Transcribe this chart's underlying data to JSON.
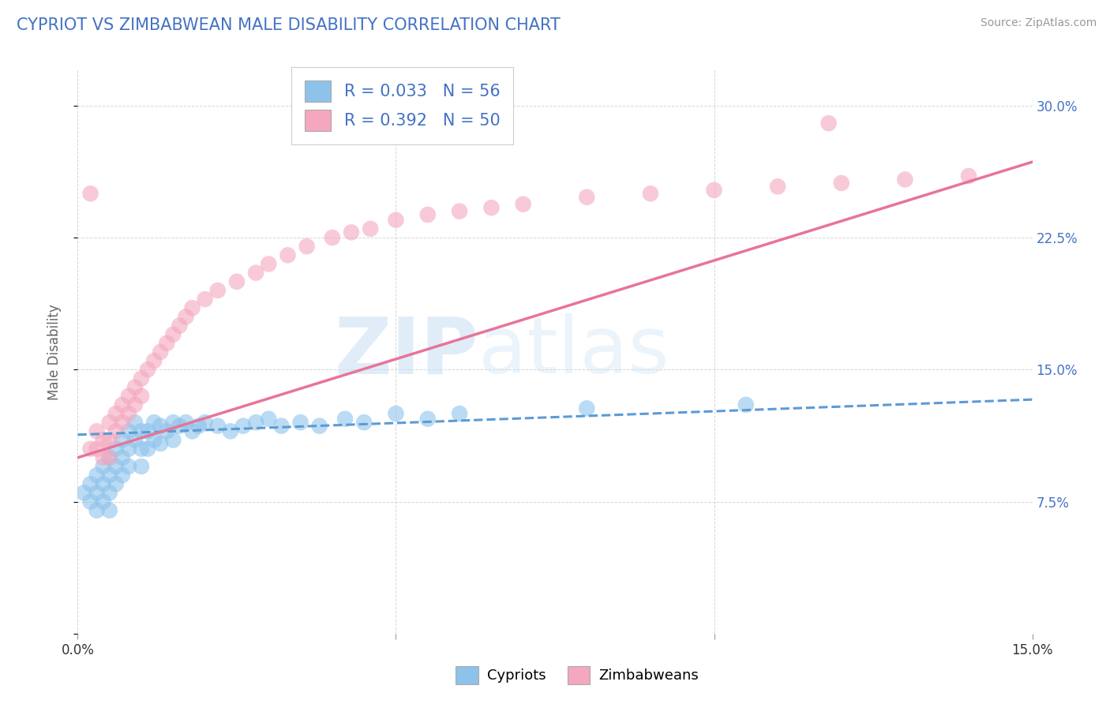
{
  "title": "CYPRIOT VS ZIMBABWEAN MALE DISABILITY CORRELATION CHART",
  "source": "Source: ZipAtlas.com",
  "ylabel": "Male Disability",
  "xlim": [
    0.0,
    0.15
  ],
  "ylim": [
    0.0,
    0.32
  ],
  "R_cypriot": 0.033,
  "N_cypriot": 56,
  "R_zimbabwean": 0.392,
  "N_zimbabwean": 50,
  "color_cypriot": "#8dc3eb",
  "color_zimbabwean": "#f4a7be",
  "line_color_cypriot": "#5b9bd5",
  "line_color_zimbabwean": "#e8749a",
  "watermark_zip": "ZIP",
  "watermark_atlas": "atlas",
  "background_color": "#ffffff",
  "grid_color": "#cccccc",
  "title_color": "#4472c4",
  "axis_label_color": "#666666",
  "tick_label_color_right": "#4472c4",
  "tick_label_color_bottom": "#333333",
  "cypriot_x": [
    0.001,
    0.002,
    0.002,
    0.003,
    0.003,
    0.003,
    0.004,
    0.004,
    0.004,
    0.005,
    0.005,
    0.005,
    0.005,
    0.006,
    0.006,
    0.006,
    0.007,
    0.007,
    0.007,
    0.008,
    0.008,
    0.008,
    0.009,
    0.009,
    0.01,
    0.01,
    0.01,
    0.011,
    0.011,
    0.012,
    0.012,
    0.013,
    0.013,
    0.014,
    0.015,
    0.015,
    0.016,
    0.017,
    0.018,
    0.019,
    0.02,
    0.022,
    0.024,
    0.026,
    0.028,
    0.03,
    0.032,
    0.035,
    0.038,
    0.042,
    0.045,
    0.05,
    0.055,
    0.06,
    0.08,
    0.105
  ],
  "cypriot_y": [
    0.08,
    0.085,
    0.075,
    0.09,
    0.08,
    0.07,
    0.095,
    0.085,
    0.075,
    0.1,
    0.09,
    0.08,
    0.07,
    0.105,
    0.095,
    0.085,
    0.11,
    0.1,
    0.09,
    0.115,
    0.105,
    0.095,
    0.12,
    0.11,
    0.115,
    0.105,
    0.095,
    0.115,
    0.105,
    0.12,
    0.11,
    0.118,
    0.108,
    0.115,
    0.12,
    0.11,
    0.118,
    0.12,
    0.115,
    0.118,
    0.12,
    0.118,
    0.115,
    0.118,
    0.12,
    0.122,
    0.118,
    0.12,
    0.118,
    0.122,
    0.12,
    0.125,
    0.122,
    0.125,
    0.128,
    0.13
  ],
  "zimbabwean_x": [
    0.002,
    0.003,
    0.003,
    0.004,
    0.004,
    0.005,
    0.005,
    0.005,
    0.006,
    0.006,
    0.007,
    0.007,
    0.008,
    0.008,
    0.009,
    0.009,
    0.01,
    0.01,
    0.011,
    0.012,
    0.013,
    0.014,
    0.015,
    0.016,
    0.017,
    0.018,
    0.02,
    0.022,
    0.025,
    0.028,
    0.03,
    0.033,
    0.036,
    0.04,
    0.043,
    0.046,
    0.05,
    0.055,
    0.06,
    0.065,
    0.07,
    0.08,
    0.09,
    0.1,
    0.11,
    0.12,
    0.13,
    0.14,
    0.118,
    0.002
  ],
  "zimbabwean_y": [
    0.105,
    0.115,
    0.105,
    0.11,
    0.1,
    0.12,
    0.11,
    0.1,
    0.125,
    0.115,
    0.13,
    0.12,
    0.135,
    0.125,
    0.14,
    0.13,
    0.145,
    0.135,
    0.15,
    0.155,
    0.16,
    0.165,
    0.17,
    0.175,
    0.18,
    0.185,
    0.19,
    0.195,
    0.2,
    0.205,
    0.21,
    0.215,
    0.22,
    0.225,
    0.228,
    0.23,
    0.235,
    0.238,
    0.24,
    0.242,
    0.244,
    0.248,
    0.25,
    0.252,
    0.254,
    0.256,
    0.258,
    0.26,
    0.29,
    0.25
  ],
  "line_cypriot_x0": 0.0,
  "line_cypriot_x1": 0.15,
  "line_cypriot_y0": 0.113,
  "line_cypriot_y1": 0.133,
  "line_zimbabwean_x0": 0.0,
  "line_zimbabwean_x1": 0.15,
  "line_zimbabwean_y0": 0.1,
  "line_zimbabwean_y1": 0.268
}
